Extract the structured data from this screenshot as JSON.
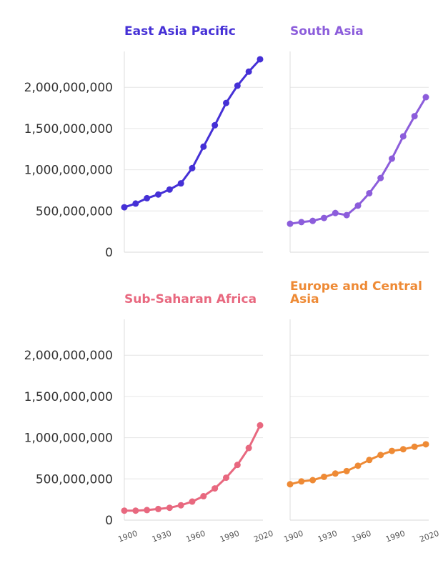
{
  "chart_data": {
    "type": "line",
    "x": [
      1900,
      1910,
      1920,
      1930,
      1940,
      1950,
      1960,
      1970,
      1980,
      1990,
      2000,
      2010,
      2020
    ],
    "x_ticks": [
      "1900",
      "1930",
      "1960",
      "1990",
      "2020"
    ],
    "x_tick_values": [
      1900,
      1930,
      1960,
      1990,
      2020
    ],
    "y_ticks": [
      "0",
      "500,000,000",
      "1,000,000,000",
      "1,500,000,000",
      "2,000,000,000"
    ],
    "y_tick_values": [
      0,
      500000000,
      1000000000,
      1500000000,
      2000000000
    ],
    "xlim": [
      1900,
      2020
    ],
    "ylim": [
      0,
      2400000000
    ],
    "grid": true,
    "panels": [
      {
        "name": "East Asia Pacific",
        "color": "#4530d6",
        "values": [
          545000000,
          590000000,
          655000000,
          700000000,
          760000000,
          835000000,
          1020000000,
          1280000000,
          1540000000,
          1810000000,
          2020000000,
          2190000000,
          2340000000
        ]
      },
      {
        "name": "South Asia",
        "color": "#8c5ddb",
        "values": [
          345000000,
          365000000,
          380000000,
          415000000,
          475000000,
          450000000,
          565000000,
          715000000,
          900000000,
          1135000000,
          1405000000,
          1650000000,
          1880000000
        ]
      },
      {
        "name": "Sub-Saharan Africa",
        "color": "#e8687f",
        "values": [
          115000000,
          115000000,
          122000000,
          135000000,
          150000000,
          180000000,
          225000000,
          290000000,
          385000000,
          515000000,
          670000000,
          875000000,
          1150000000
        ]
      },
      {
        "name": "Europe and Central Asia",
        "color": "#ee8a35",
        "values": [
          435000000,
          470000000,
          485000000,
          525000000,
          565000000,
          595000000,
          660000000,
          730000000,
          790000000,
          840000000,
          860000000,
          890000000,
          920000000
        ]
      }
    ]
  }
}
